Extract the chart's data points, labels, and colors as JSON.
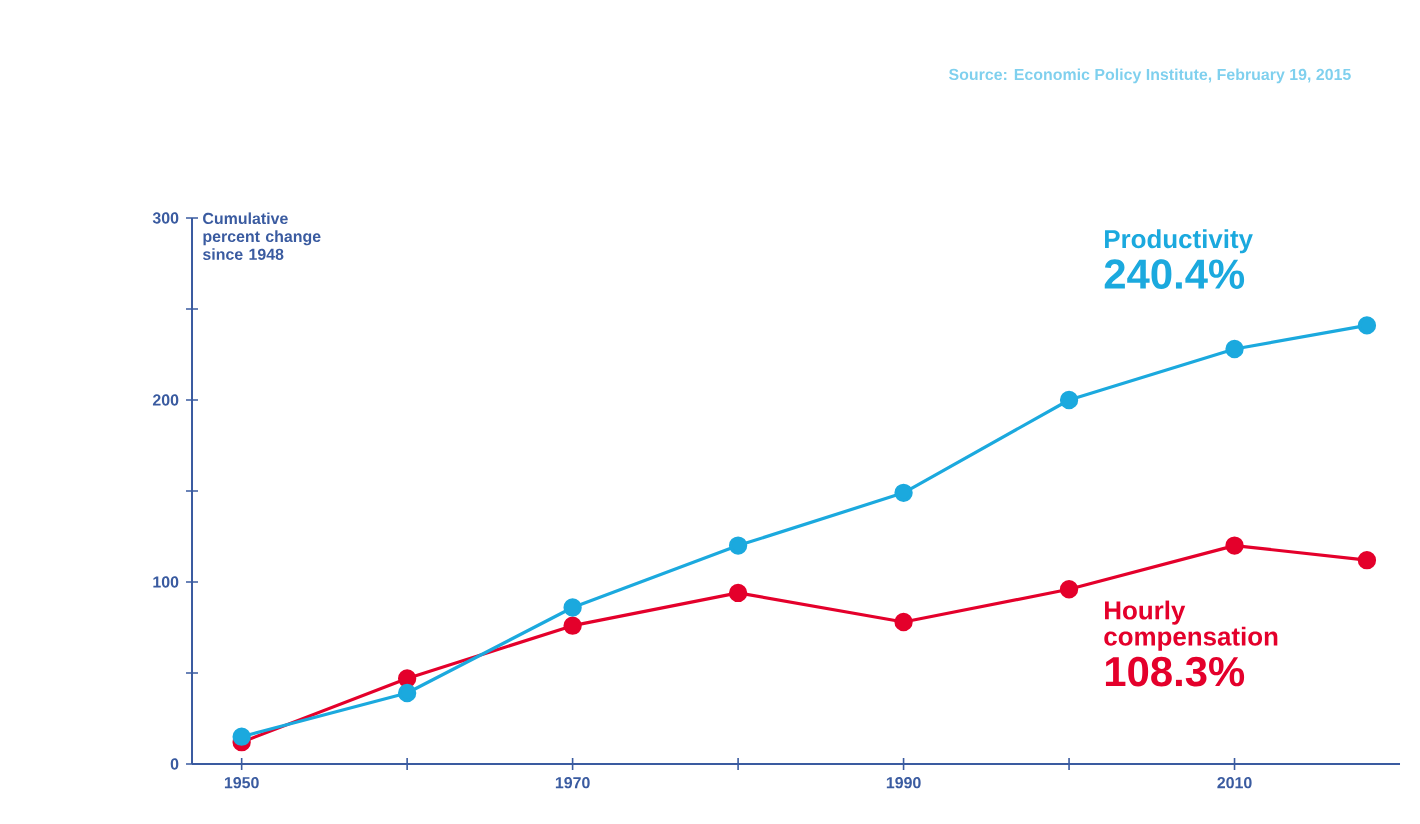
{
  "chart_data": {
    "type": "line",
    "ylabel": "Cumulative percent change since 1948",
    "x": [
      1950,
      1960,
      1970,
      1980,
      1990,
      2000,
      2010,
      2018
    ],
    "series": [
      {
        "name": "Productivity",
        "color": "#1ba9de",
        "values": [
          15,
          39,
          86,
          120,
          149,
          200,
          228,
          241
        ]
      },
      {
        "name": "Hourly compensation",
        "color": "#e4002b",
        "values": [
          12,
          47,
          76,
          94,
          78,
          96,
          120,
          112
        ]
      }
    ],
    "annotations": [
      "240.4%",
      "108.3%",
      "Source: Economic Policy Institute, February 19, 2015"
    ],
    "xlim": [
      1947,
      2020
    ],
    "ylim": [
      0,
      300
    ],
    "xticks": [
      1950,
      {
        "value": 1960,
        "label": null
      },
      1970,
      {
        "value": 1980,
        "label": null
      },
      1990,
      {
        "value": 2000,
        "label": null
      },
      2010
    ],
    "yticks": [
      0,
      {
        "value": 50,
        "label": null
      },
      100,
      {
        "value": 150,
        "label": null
      },
      200,
      {
        "value": 250,
        "label": null
      },
      300
    ],
    "marker": "circle",
    "line_style": "solid",
    "grid": false,
    "legend": false
  }
}
